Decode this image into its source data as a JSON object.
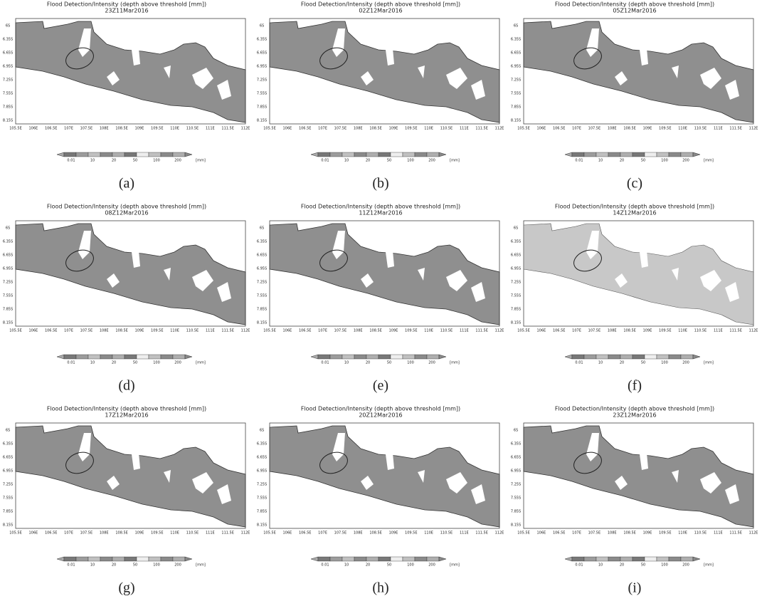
{
  "figure": {
    "panel_title": "Flood Detection/Intensity (depth above threshold [mm])",
    "yticks": [
      "6S",
      "6.35S",
      "6.65S",
      "6.95S",
      "7.25S",
      "7.55S",
      "7.85S",
      "8.15S"
    ],
    "xticks": [
      "105.5E",
      "106E",
      "106.5E",
      "107E",
      "107.5E",
      "108E",
      "108.5E",
      "109E",
      "109.5E",
      "110E",
      "110.5E",
      "111E",
      "111.5E",
      "112E"
    ],
    "colorbar": [
      "0.01",
      "10",
      "20",
      "50",
      "100",
      "200",
      "[mm]"
    ],
    "panels": [
      {
        "time": "23Z11Mar2016",
        "caption": "(a)"
      },
      {
        "time": "02Z12Mar2016",
        "caption": "(b)"
      },
      {
        "time": "05Z12Mar2016",
        "caption": "(c)"
      },
      {
        "time": "08Z12Mar2016",
        "caption": "(d)"
      },
      {
        "time": "11Z12Mar2016",
        "caption": "(e)"
      },
      {
        "time": "14Z12Mar2016",
        "caption": "(f)"
      },
      {
        "time": "17Z12Mar2016",
        "caption": "(g)"
      },
      {
        "time": "20Z12Mar2016",
        "caption": "(h)"
      },
      {
        "time": "23Z12Mar2016",
        "caption": "(i)"
      }
    ]
  }
}
